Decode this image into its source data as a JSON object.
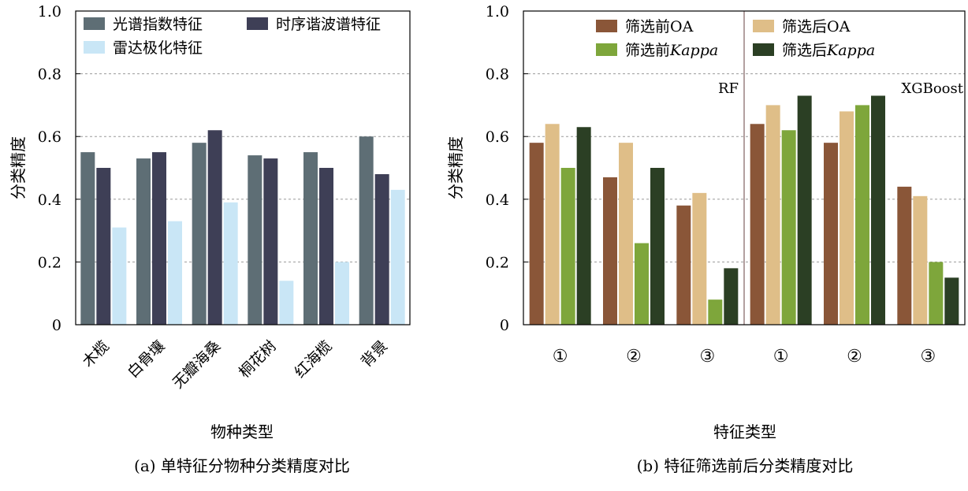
{
  "chart_data": [
    {
      "id": "a",
      "type": "bar",
      "caption": "(a) 单特征分物种分类精度对比",
      "xlabel": "物种类型",
      "ylabel": "分类精度",
      "ylim": [
        0,
        1.0
      ],
      "yticks": [
        "0",
        "0.2",
        "0.4",
        "0.6",
        "0.8",
        "1.0"
      ],
      "grid": "horizontal dashed",
      "legend_position": "top",
      "categories": [
        "木榄",
        "白骨壤",
        "无瓣海桑",
        "桐花树",
        "红海榄",
        "背景"
      ],
      "series": [
        {
          "name": "光谱指数特征",
          "color": "#5e6e75",
          "values": [
            0.55,
            0.53,
            0.58,
            0.54,
            0.55,
            0.6
          ]
        },
        {
          "name": "时序谐波谱特征",
          "color": "#3e3f56",
          "values": [
            0.5,
            0.55,
            0.62,
            0.53,
            0.5,
            0.48
          ]
        },
        {
          "name": "雷达极化特征",
          "color": "#c9e6f6",
          "values": [
            0.31,
            0.33,
            0.39,
            0.14,
            0.2,
            0.43
          ]
        }
      ]
    },
    {
      "id": "b",
      "type": "bar",
      "caption": "(b) 特征筛选前后分类精度对比",
      "xlabel": "特征类型",
      "ylabel": "分类精度",
      "ylim": [
        0,
        1.0
      ],
      "yticks": [
        "0",
        "0.2",
        "0.4",
        "0.6",
        "0.8",
        "1.0"
      ],
      "grid": "horizontal dashed",
      "legend_position": "top",
      "categories": [
        "①",
        "②",
        "③",
        "①",
        "②",
        "③"
      ],
      "groups": [
        {
          "label": "RF",
          "categories": [
            0,
            1,
            2
          ]
        },
        {
          "label": "XGBoost",
          "categories": [
            3,
            4,
            5
          ]
        }
      ],
      "series": [
        {
          "name_prefix": "筛选前",
          "name_suffix": "OA",
          "italic": false,
          "color": "#8a5638",
          "values": [
            0.58,
            0.47,
            0.38,
            0.64,
            0.58,
            0.44
          ]
        },
        {
          "name_prefix": "筛选后",
          "name_suffix": "OA",
          "italic": false,
          "color": "#dfbe88",
          "values": [
            0.64,
            0.58,
            0.42,
            0.7,
            0.68,
            0.41
          ]
        },
        {
          "name_prefix": "筛选前",
          "name_suffix": "Kappa",
          "italic": true,
          "color": "#7ea63b",
          "values": [
            0.5,
            0.26,
            0.08,
            0.62,
            0.7,
            0.2
          ]
        },
        {
          "name_prefix": "筛选后",
          "name_suffix": "Kappa",
          "italic": true,
          "color": "#2b3f24",
          "values": [
            0.63,
            0.5,
            0.18,
            0.73,
            0.73,
            0.15
          ]
        }
      ]
    }
  ]
}
